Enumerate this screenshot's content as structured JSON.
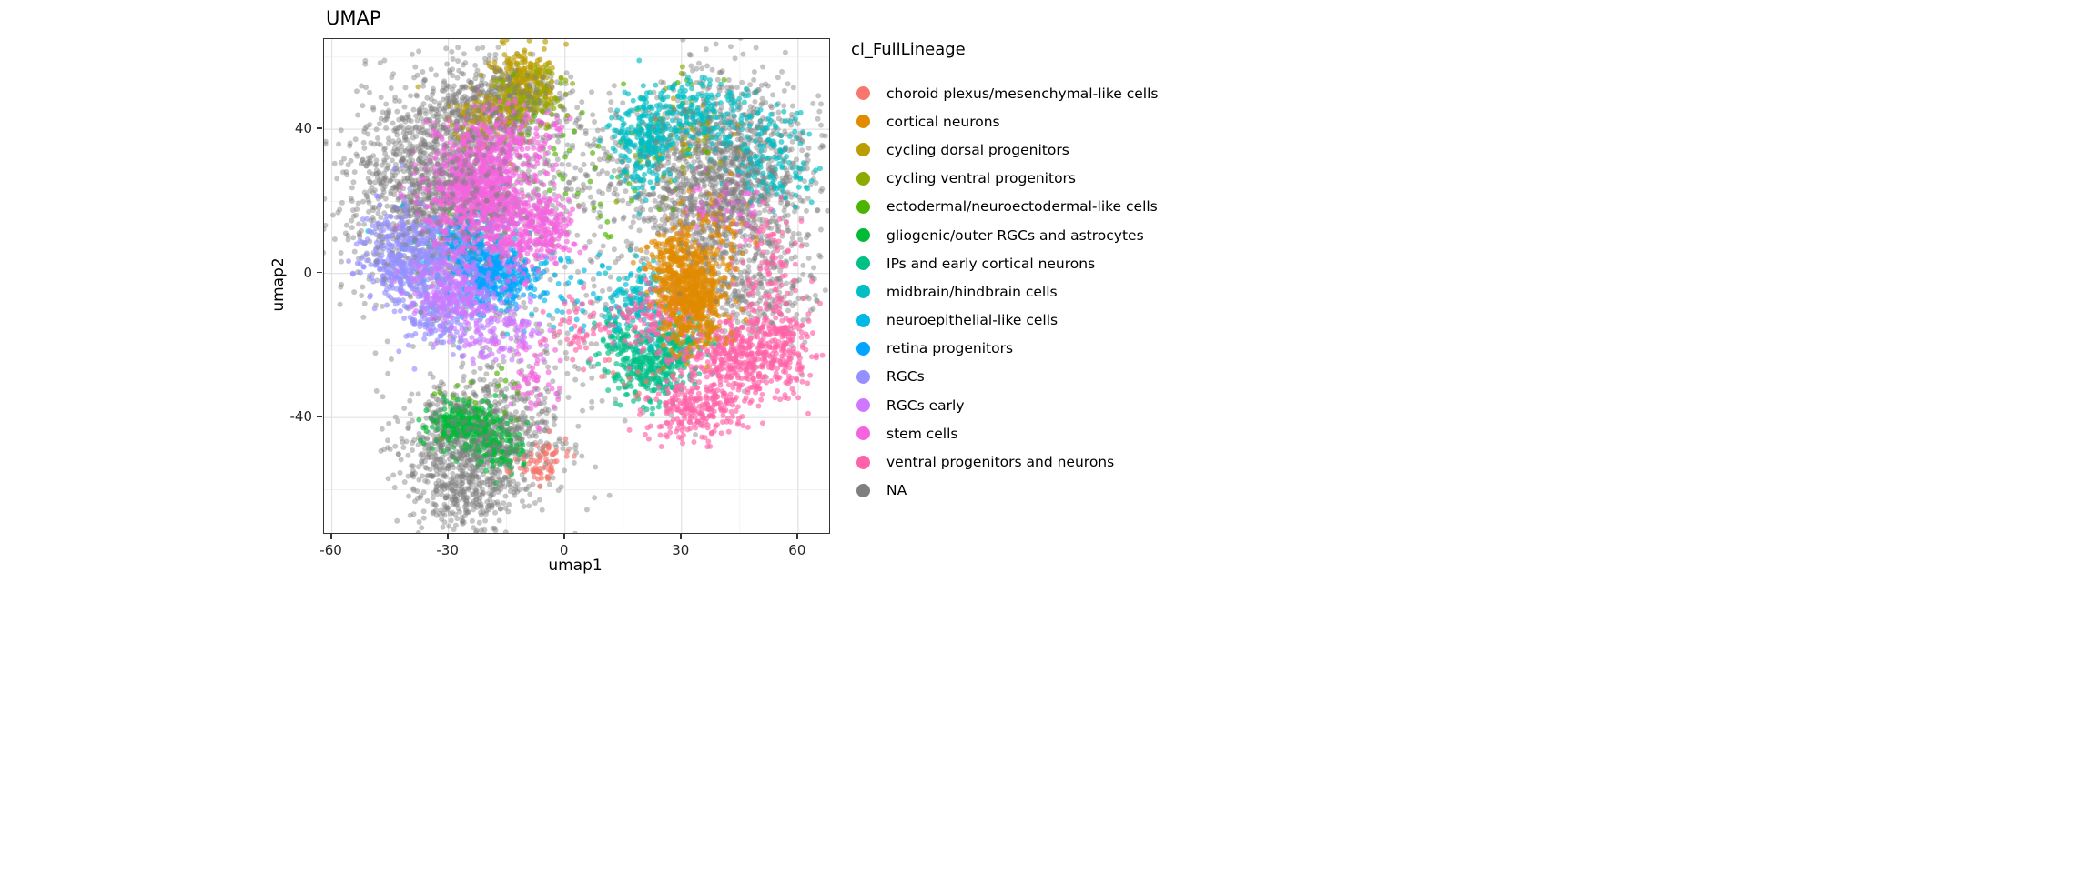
{
  "title": "UMAP",
  "axes": {
    "x": {
      "label": "umap1",
      "ticks": [
        -60,
        -30,
        0,
        30,
        60
      ],
      "minor_ticks": [
        -45,
        -15,
        15,
        45
      ]
    },
    "y": {
      "label": "umap2",
      "ticks": [
        -40,
        0,
        40
      ],
      "minor_ticks": [
        -60,
        -20,
        20,
        60
      ]
    }
  },
  "legend": {
    "title": "cl_FullLineage",
    "entries": [
      {
        "label": "choroid plexus/mesenchymal-like cells",
        "color": "#F8766D"
      },
      {
        "label": "cortical neurons",
        "color": "#E08B00"
      },
      {
        "label": "cycling dorsal progenitors",
        "color": "#BB9D00"
      },
      {
        "label": "cycling ventral progenitors",
        "color": "#8CAB00"
      },
      {
        "label": "ectodermal/neuroectodermal-like cells",
        "color": "#4CB400"
      },
      {
        "label": "gliogenic/outer RGCs and astrocytes",
        "color": "#00BA38"
      },
      {
        "label": "IPs and early cortical neurons",
        "color": "#00C087"
      },
      {
        "label": "midbrain/hindbrain cells",
        "color": "#00BFC4"
      },
      {
        "label": "neuroepithelial-like cells",
        "color": "#00B8E5"
      },
      {
        "label": "retina progenitors",
        "color": "#00A5FF"
      },
      {
        "label": "RGCs",
        "color": "#9590FF"
      },
      {
        "label": "RGCs early",
        "color": "#CF78FF"
      },
      {
        "label": "stem cells",
        "color": "#F564DE"
      },
      {
        "label": "ventral progenitors and neurons",
        "color": "#FF62A8"
      },
      {
        "label": "NA",
        "color": "#7F7F7F"
      }
    ]
  },
  "chart_data": {
    "type": "scatter",
    "title": "UMAP",
    "xlabel": "umap1",
    "ylabel": "umap2",
    "xlim": [
      -62,
      68
    ],
    "ylim": [
      -72,
      65
    ],
    "grid": true,
    "legend_position": "right",
    "note": "Dense single-cell UMAP embedding; clusters given as gaussian blobs (cx,cy = center in data coords, sx,sy = spread, n = point count). Series listed in draw order (background to foreground).",
    "series": [
      {
        "name": "NA",
        "color": "#7F7F7F",
        "clusters": [
          {
            "cx": -32,
            "cy": 22,
            "sx": 12,
            "sy": 15,
            "n": 1500
          },
          {
            "cx": -20,
            "cy": 45,
            "sx": 9,
            "sy": 6,
            "n": 400
          },
          {
            "cx": -22,
            "cy": -47,
            "sx": 10,
            "sy": 9,
            "n": 850
          },
          {
            "cx": -26,
            "cy": -63,
            "sx": 6,
            "sy": 5,
            "n": 180
          },
          {
            "cx": 40,
            "cy": 27,
            "sx": 12,
            "sy": 13,
            "n": 1250
          },
          {
            "cx": 47,
            "cy": -5,
            "sx": 9,
            "sy": 8,
            "n": 350
          },
          {
            "cx": 5,
            "cy": 32,
            "sx": 8,
            "sy": 10,
            "n": 120
          },
          {
            "cx": 0,
            "cy": -12,
            "sx": 22,
            "sy": 20,
            "n": 260
          }
        ]
      },
      {
        "name": "cycling dorsal progenitors",
        "color": "#BB9D00",
        "clusters": [
          {
            "cx": -11,
            "cy": 53,
            "sx": 4,
            "sy": 4.5,
            "n": 260
          },
          {
            "cx": -17,
            "cy": 43,
            "sx": 6,
            "sy": 5,
            "n": 120
          },
          {
            "cx": 30,
            "cy": 40,
            "sx": 7,
            "sy": 6,
            "n": 45
          }
        ]
      },
      {
        "name": "cycling ventral progenitors",
        "color": "#8CAB00",
        "clusters": [
          {
            "cx": -9,
            "cy": 48,
            "sx": 5,
            "sy": 4,
            "n": 90
          },
          {
            "cx": 27,
            "cy": 36,
            "sx": 8,
            "sy": 6,
            "n": 35
          }
        ]
      },
      {
        "name": "ectodermal/neuroectodermal-like cells",
        "color": "#4CB400",
        "clusters": [
          {
            "cx": 0,
            "cy": 28,
            "sx": 18,
            "sy": 14,
            "n": 70
          },
          {
            "cx": -25,
            "cy": -35,
            "sx": 8,
            "sy": 6,
            "n": 20
          }
        ]
      },
      {
        "name": "gliogenic/outer RGCs and astrocytes",
        "color": "#00BA38",
        "clusters": [
          {
            "cx": -25,
            "cy": -42,
            "sx": 4.5,
            "sy": 3.5,
            "n": 240
          },
          {
            "cx": -17,
            "cy": -48,
            "sx": 3.5,
            "sy": 3,
            "n": 90
          }
        ]
      },
      {
        "name": "IPs and early cortical neurons",
        "color": "#00C087",
        "clusters": [
          {
            "cx": 22,
            "cy": -26,
            "sx": 5,
            "sy": 4.5,
            "n": 300
          },
          {
            "cx": 29,
            "cy": -18,
            "sx": 4,
            "sy": 4,
            "n": 130
          },
          {
            "cx": 14,
            "cy": -18,
            "sx": 3.5,
            "sy": 3.5,
            "n": 70
          }
        ]
      },
      {
        "name": "midbrain/hindbrain cells",
        "color": "#00BFC4",
        "clusters": [
          {
            "cx": 21,
            "cy": 37,
            "sx": 4,
            "sy": 7,
            "n": 260
          },
          {
            "cx": 33,
            "cy": 45,
            "sx": 6,
            "sy": 4.5,
            "n": 140
          },
          {
            "cx": 53,
            "cy": 30,
            "sx": 5,
            "sy": 6,
            "n": 110
          },
          {
            "cx": 18,
            "cy": -8,
            "sx": 4,
            "sy": 5,
            "n": 130
          },
          {
            "cx": 45,
            "cy": 40,
            "sx": 8,
            "sy": 6,
            "n": 80
          }
        ]
      },
      {
        "name": "neuroepithelial-like cells",
        "color": "#00B8E5",
        "clusters": [
          {
            "cx": -20,
            "cy": 3,
            "sx": 9,
            "sy": 8,
            "n": 170
          },
          {
            "cx": 5,
            "cy": -5,
            "sx": 6,
            "sy": 6,
            "n": 40
          }
        ]
      },
      {
        "name": "retina progenitors",
        "color": "#00A5FF",
        "clusters": [
          {
            "cx": -18,
            "cy": -1,
            "sx": 5,
            "sy": 4,
            "n": 300
          },
          {
            "cx": -25,
            "cy": 9,
            "sx": 4.5,
            "sy": 4,
            "n": 110
          }
        ]
      },
      {
        "name": "RGCs",
        "color": "#9590FF",
        "clusters": [
          {
            "cx": -40,
            "cy": 4,
            "sx": 6,
            "sy": 7,
            "n": 470
          },
          {
            "cx": -31,
            "cy": -12,
            "sx": 5.5,
            "sy": 5,
            "n": 160
          }
        ]
      },
      {
        "name": "RGCs early",
        "color": "#CF78FF",
        "clusters": [
          {
            "cx": -28,
            "cy": -5,
            "sx": 6,
            "sy": 6,
            "n": 260
          },
          {
            "cx": -16,
            "cy": -17,
            "sx": 5,
            "sy": 4,
            "n": 110
          }
        ]
      },
      {
        "name": "stem cells",
        "color": "#F564DE",
        "clusters": [
          {
            "cx": -22,
            "cy": 24,
            "sx": 7,
            "sy": 8,
            "n": 750
          },
          {
            "cx": -12,
            "cy": 11,
            "sx": 5,
            "sy": 6,
            "n": 220
          },
          {
            "cx": -4,
            "cy": 13,
            "sx": 3,
            "sy": 4,
            "n": 120
          },
          {
            "cx": -14,
            "cy": 38,
            "sx": 6,
            "sy": 5,
            "n": 160
          },
          {
            "cx": 40,
            "cy": 18,
            "sx": 5,
            "sy": 5,
            "n": 60
          },
          {
            "cx": -8,
            "cy": -30,
            "sx": 4,
            "sy": 6,
            "n": 50
          }
        ]
      },
      {
        "name": "ventral progenitors and neurons",
        "color": "#FF62A8",
        "clusters": [
          {
            "cx": 45,
            "cy": -24,
            "sx": 7,
            "sy": 6,
            "n": 420
          },
          {
            "cx": 57,
            "cy": -20,
            "sx": 3.5,
            "sy": 6,
            "n": 150
          },
          {
            "cx": 33,
            "cy": -38,
            "sx": 6,
            "sy": 4,
            "n": 220
          },
          {
            "cx": 24,
            "cy": -12,
            "sx": 4.5,
            "sy": 5,
            "n": 130
          },
          {
            "cx": 52,
            "cy": 2,
            "sx": 4,
            "sy": 9,
            "n": 90
          },
          {
            "cx": 5,
            "cy": -15,
            "sx": 5,
            "sy": 5,
            "n": 60
          }
        ]
      },
      {
        "name": "cortical neurons",
        "color": "#E08B00",
        "clusters": [
          {
            "cx": 33,
            "cy": -6,
            "sx": 4.5,
            "sy": 7,
            "n": 600
          },
          {
            "cx": 28,
            "cy": 4,
            "sx": 4,
            "sy": 4,
            "n": 130
          },
          {
            "cx": 38,
            "cy": 12,
            "sx": 5,
            "sy": 4,
            "n": 60
          }
        ]
      },
      {
        "name": "choroid plexus/mesenchymal-like cells",
        "color": "#F8766D",
        "clusters": [
          {
            "cx": -7,
            "cy": -54,
            "sx": 3,
            "sy": 3,
            "n": 45
          },
          {
            "cx": -3,
            "cy": -49,
            "sx": 2.5,
            "sy": 2.5,
            "n": 18
          },
          {
            "cx": 20,
            "cy": -30,
            "sx": 5,
            "sy": 4,
            "n": 12
          }
        ]
      },
      {
        "name": "NA",
        "color": "#7F7F7F",
        "clusters": [
          {
            "cx": 40,
            "cy": 25,
            "sx": 11,
            "sy": 12,
            "n": 280
          },
          {
            "cx": -30,
            "cy": 25,
            "sx": 10,
            "sy": 12,
            "n": 200
          },
          {
            "cx": -22,
            "cy": -46,
            "sx": 8,
            "sy": 7,
            "n": 160
          },
          {
            "cx": -15,
            "cy": 48,
            "sx": 7,
            "sy": 5,
            "n": 120
          }
        ]
      }
    ]
  }
}
